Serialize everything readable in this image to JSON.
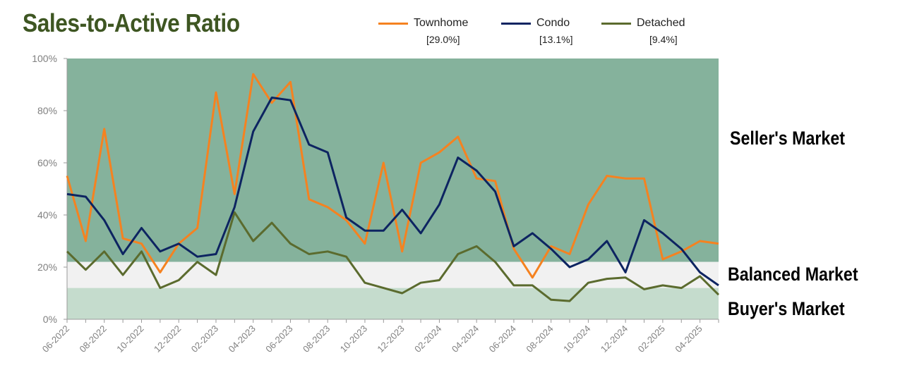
{
  "title": "Sales-to-Active Ratio",
  "legend": [
    {
      "name": "Townhome",
      "summary": "[29.0%]",
      "color": "#f58220"
    },
    {
      "name": "Condo",
      "summary": "[13.1%]",
      "color": "#0d2461"
    },
    {
      "name": "Detached",
      "summary": "[9.4%]",
      "color": "#5b6b2e"
    }
  ],
  "zones": {
    "sellers": {
      "label": "Seller's Market",
      "from": 22,
      "to": 100,
      "color": "#85b29c"
    },
    "balanced": {
      "label": "Balanced Market",
      "from": 12,
      "to": 22,
      "color": "#f1f1f1"
    },
    "buyers": {
      "label": "Buyer's Market",
      "from": 0,
      "to": 12,
      "color": "#c5dccd"
    }
  },
  "chart_data": {
    "type": "line",
    "title": "Sales-to-Active Ratio",
    "xlabel": "",
    "ylabel": "",
    "ylim": [
      0,
      100
    ],
    "yticks": [
      "0%",
      "20%",
      "40%",
      "60%",
      "80%",
      "100%"
    ],
    "categories": [
      "06-2022",
      "07-2022",
      "08-2022",
      "09-2022",
      "10-2022",
      "11-2022",
      "12-2022",
      "01-2023",
      "02-2023",
      "03-2023",
      "04-2023",
      "05-2023",
      "06-2023",
      "07-2023",
      "08-2023",
      "09-2023",
      "10-2023",
      "11-2023",
      "12-2023",
      "01-2024",
      "02-2024",
      "03-2024",
      "04-2024",
      "05-2024",
      "06-2024",
      "07-2024",
      "08-2024",
      "09-2024",
      "10-2024",
      "11-2024",
      "12-2024",
      "01-2025",
      "02-2025",
      "03-2025",
      "04-2025",
      "05-2025"
    ],
    "xtick_labels": [
      "06-2022",
      "08-2022",
      "10-2022",
      "12-2022",
      "02-2023",
      "04-2023",
      "06-2023",
      "08-2023",
      "10-2023",
      "12-2023",
      "02-2024",
      "04-2024",
      "06-2024",
      "08-2024",
      "10-2024",
      "12-2024",
      "02-2025",
      "04-2025"
    ],
    "series": [
      {
        "name": "Townhome",
        "values": [
          55,
          30,
          73,
          31,
          29,
          18,
          29,
          35,
          87,
          48,
          94,
          83,
          91,
          46,
          43,
          38,
          29,
          60,
          26,
          60,
          64,
          70,
          54,
          53,
          27,
          16,
          28,
          25,
          44,
          55,
          54,
          54,
          23,
          26,
          30,
          29
        ]
      },
      {
        "name": "Condo",
        "values": [
          48,
          47,
          38,
          25,
          35,
          26,
          29,
          24,
          25,
          43,
          72,
          85,
          84,
          67,
          64,
          39,
          34,
          34,
          42,
          33,
          44,
          62,
          57,
          49,
          28,
          33,
          27,
          20,
          23,
          30,
          18,
          38,
          33,
          27,
          18,
          13
        ]
      },
      {
        "name": "Detached",
        "values": [
          26,
          19,
          26,
          17,
          26,
          12,
          15,
          22,
          17,
          41,
          30,
          37,
          29,
          25,
          26,
          24,
          14,
          12,
          10,
          14,
          15,
          25,
          28,
          22,
          13,
          13,
          7.5,
          7,
          14,
          15.5,
          16,
          11.5,
          13,
          12,
          16.5,
          9.4
        ]
      }
    ]
  }
}
